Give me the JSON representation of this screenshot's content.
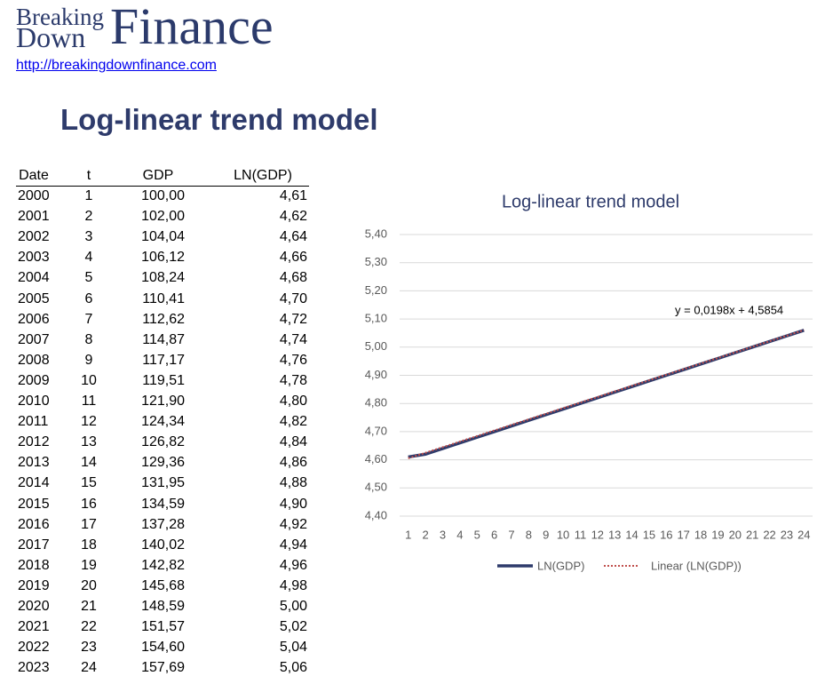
{
  "header": {
    "logo_top": "Breaking",
    "logo_bottom": "Down",
    "logo_big": "Finance",
    "url": "http://breakingdownfinance.com"
  },
  "title": "Log-linear trend model",
  "table": {
    "columns": [
      "Date",
      "t",
      "GDP",
      "LN(GDP)"
    ],
    "rows": [
      [
        "2000",
        "1",
        "100,00",
        "4,61"
      ],
      [
        "2001",
        "2",
        "102,00",
        "4,62"
      ],
      [
        "2002",
        "3",
        "104,04",
        "4,64"
      ],
      [
        "2003",
        "4",
        "106,12",
        "4,66"
      ],
      [
        "2004",
        "5",
        "108,24",
        "4,68"
      ],
      [
        "2005",
        "6",
        "110,41",
        "4,70"
      ],
      [
        "2006",
        "7",
        "112,62",
        "4,72"
      ],
      [
        "2007",
        "8",
        "114,87",
        "4,74"
      ],
      [
        "2008",
        "9",
        "117,17",
        "4,76"
      ],
      [
        "2009",
        "10",
        "119,51",
        "4,78"
      ],
      [
        "2010",
        "11",
        "121,90",
        "4,80"
      ],
      [
        "2011",
        "12",
        "124,34",
        "4,82"
      ],
      [
        "2012",
        "13",
        "126,82",
        "4,84"
      ],
      [
        "2013",
        "14",
        "129,36",
        "4,86"
      ],
      [
        "2014",
        "15",
        "131,95",
        "4,88"
      ],
      [
        "2015",
        "16",
        "134,59",
        "4,90"
      ],
      [
        "2016",
        "17",
        "137,28",
        "4,92"
      ],
      [
        "2017",
        "18",
        "140,02",
        "4,94"
      ],
      [
        "2018",
        "19",
        "142,82",
        "4,96"
      ],
      [
        "2019",
        "20",
        "145,68",
        "4,98"
      ],
      [
        "2020",
        "21",
        "148,59",
        "5,00"
      ],
      [
        "2021",
        "22",
        "151,57",
        "5,02"
      ],
      [
        "2022",
        "23",
        "154,60",
        "5,04"
      ],
      [
        "2023",
        "24",
        "157,69",
        "5,06"
      ]
    ]
  },
  "chart_data": {
    "type": "line",
    "title": "Log-linear trend model",
    "categories": [
      "1",
      "2",
      "3",
      "4",
      "5",
      "6",
      "7",
      "8",
      "9",
      "10",
      "11",
      "12",
      "13",
      "14",
      "15",
      "16",
      "17",
      "18",
      "19",
      "20",
      "21",
      "22",
      "23",
      "24"
    ],
    "series": [
      {
        "name": "LN(GDP)",
        "color": "#2e3b6b",
        "style": "solid",
        "values": [
          4.61,
          4.62,
          4.64,
          4.66,
          4.68,
          4.7,
          4.72,
          4.74,
          4.76,
          4.78,
          4.8,
          4.82,
          4.84,
          4.86,
          4.88,
          4.9,
          4.92,
          4.94,
          4.96,
          4.98,
          5.0,
          5.02,
          5.04,
          5.06
        ]
      },
      {
        "name": "Linear (LN(GDP))",
        "color": "#c0504d",
        "style": "dotted",
        "values": [
          4.6052,
          4.625,
          4.6448,
          4.6646,
          4.6844,
          4.7042,
          4.724,
          4.7438,
          4.7636,
          4.7834,
          4.8032,
          4.823,
          4.8428,
          4.8626,
          4.8824,
          4.9022,
          4.922,
          4.9418,
          4.9616,
          4.9814,
          5.0012,
          5.021,
          5.0408,
          5.0606
        ]
      }
    ],
    "annotation": "y = 0,0198x + 4,5854",
    "ylim": [
      4.4,
      5.4
    ],
    "yticks": [
      {
        "value": 4.4,
        "label": "4,40"
      },
      {
        "value": 4.5,
        "label": "4,50"
      },
      {
        "value": 4.6,
        "label": "4,60"
      },
      {
        "value": 4.7,
        "label": "4,70"
      },
      {
        "value": 4.8,
        "label": "4,80"
      },
      {
        "value": 4.9,
        "label": "4,90"
      },
      {
        "value": 5.0,
        "label": "5,00"
      },
      {
        "value": 5.1,
        "label": "5,10"
      },
      {
        "value": 5.2,
        "label": "5,20"
      },
      {
        "value": 5.3,
        "label": "5,30"
      },
      {
        "value": 5.4,
        "label": "5,40"
      }
    ],
    "grid": true,
    "legend": "bottom"
  }
}
